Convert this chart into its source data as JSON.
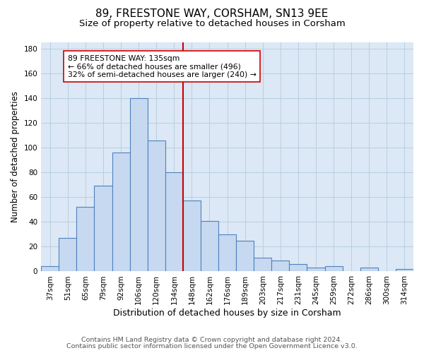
{
  "title": "89, FREESTONE WAY, CORSHAM, SN13 9EE",
  "subtitle": "Size of property relative to detached houses in Corsham",
  "xlabel": "Distribution of detached houses by size in Corsham",
  "ylabel": "Number of detached properties",
  "bar_labels": [
    "37sqm",
    "51sqm",
    "65sqm",
    "79sqm",
    "92sqm",
    "106sqm",
    "120sqm",
    "134sqm",
    "148sqm",
    "162sqm",
    "176sqm",
    "189sqm",
    "203sqm",
    "217sqm",
    "231sqm",
    "245sqm",
    "259sqm",
    "272sqm",
    "286sqm",
    "300sqm",
    "314sqm"
  ],
  "bar_heights": [
    4,
    27,
    52,
    69,
    96,
    140,
    106,
    80,
    57,
    41,
    30,
    25,
    11,
    9,
    6,
    3,
    4,
    0,
    3,
    0,
    2
  ],
  "bar_color": "#c6d9f0",
  "bar_edge_color": "#4f81bd",
  "vline_bar_index": 7,
  "vline_color": "#cc0000",
  "annotation_text": "89 FREESTONE WAY: 135sqm\n← 66% of detached houses are smaller (496)\n32% of semi-detached houses are larger (240) →",
  "annotation_box_color": "#ffffff",
  "annotation_box_edge": "#cc0000",
  "footer_line1": "Contains HM Land Registry data © Crown copyright and database right 2024.",
  "footer_line2": "Contains public sector information licensed under the Open Government Licence v3.0.",
  "ylim": [
    0,
    185
  ],
  "yticks": [
    0,
    20,
    40,
    60,
    80,
    100,
    120,
    140,
    160,
    180
  ],
  "background_color": "#ffffff",
  "ax_background_color": "#dce8f5",
  "grid_color": "#b8cfe0",
  "title_fontsize": 11,
  "subtitle_fontsize": 9.5,
  "xlabel_fontsize": 9,
  "ylabel_fontsize": 8.5,
  "tick_fontsize": 7.5,
  "annotation_fontsize": 7.8,
  "footer_fontsize": 6.8
}
